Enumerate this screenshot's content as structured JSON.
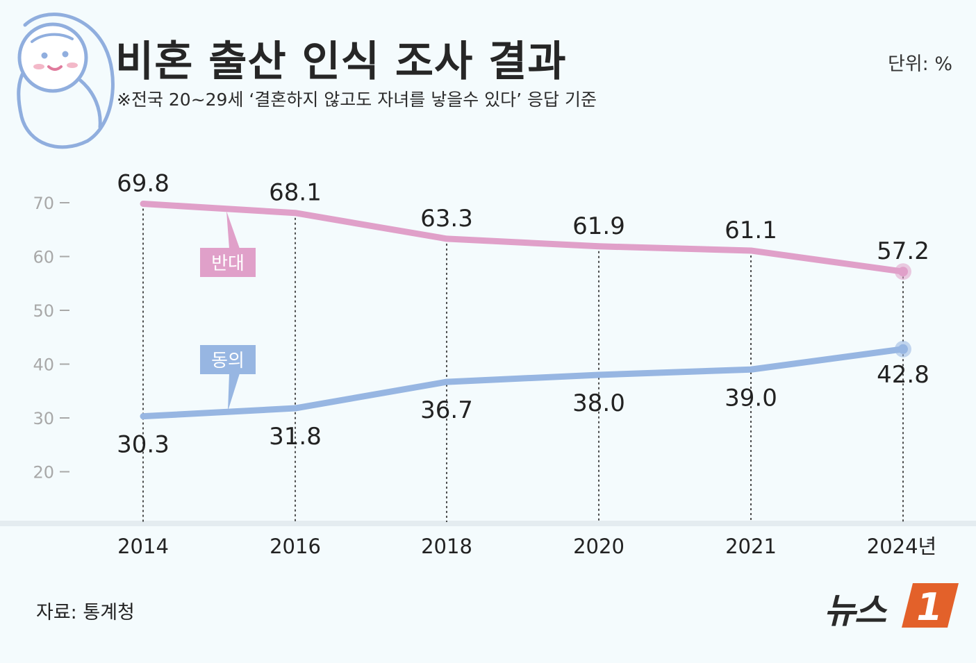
{
  "header": {
    "title": "비혼 출산 인식 조사 결과",
    "subtitle": "※전국 20~29세 ‘결혼하지 않고도 자녀를 낳을수 있다’ 응답 기준",
    "unit": "단위: %"
  },
  "footer": {
    "source": "자료: 통계청",
    "logo_text": "뉴스",
    "logo_mark": "1"
  },
  "colors": {
    "oppose": "#e0a0c9",
    "agree": "#97b6e2",
    "grid": "#222222",
    "axis_text": "#a8a8a8",
    "logo_accent": "#e3612a",
    "baby_outline": "#90aede"
  },
  "chart_data": {
    "type": "line",
    "categories": [
      "2014",
      "2016",
      "2018",
      "2020",
      "2021",
      "2024년"
    ],
    "ylim": [
      15,
      75
    ],
    "yticks": [
      20,
      30,
      40,
      50,
      60,
      70
    ],
    "grid": "vertical dashed lines at each year",
    "legend": "inline callout labels",
    "series": [
      {
        "name": "반대",
        "values": [
          69.8,
          68.1,
          63.3,
          61.9,
          61.1,
          57.2
        ],
        "labels": [
          "69.8",
          "68.1",
          "63.3",
          "61.9",
          "61.1",
          "57.2"
        ]
      },
      {
        "name": "동의",
        "values": [
          30.3,
          31.8,
          36.7,
          38.0,
          39.0,
          42.8
        ],
        "labels": [
          "30.3",
          "31.8",
          "36.7",
          "38.0",
          "39.0",
          "42.8"
        ]
      }
    ]
  }
}
